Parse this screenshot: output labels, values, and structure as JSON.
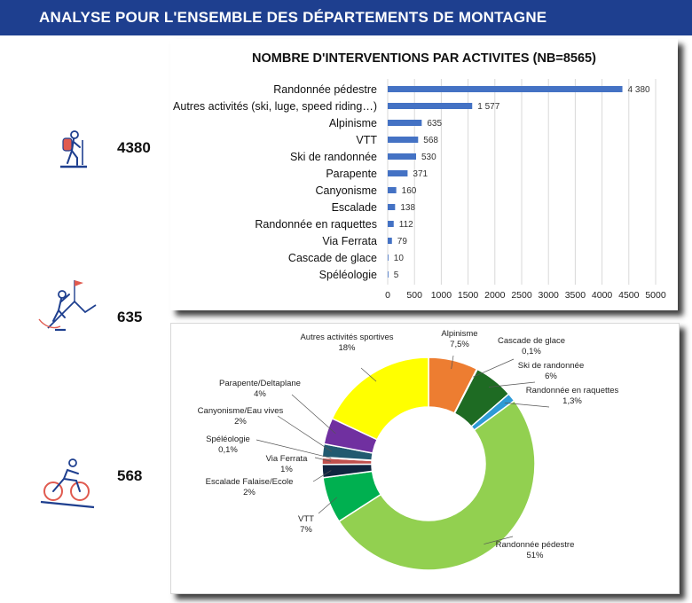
{
  "header": {
    "title": "ANALYSE POUR L'ENSEMBLE DES DÉPARTEMENTS DE MONTAGNE"
  },
  "stats": [
    {
      "value": "4380",
      "icon": "hiker-icon"
    },
    {
      "value": "635",
      "icon": "climber-icon"
    },
    {
      "value": "568",
      "icon": "mountain-biker-icon"
    }
  ],
  "colors": {
    "header": "#1e3f8f",
    "bar": "#4472c4"
  },
  "chart_data": [
    {
      "type": "bar",
      "orientation": "horizontal",
      "title": "NOMBRE D'INTERVENTIONS PAR ACTIVITES (NB=8565)",
      "categories": [
        "Randonnée pédestre",
        "Autres activités (ski, luge, speed riding…)",
        "Alpinisme",
        "VTT",
        "Ski de randonnée",
        "Parapente",
        "Canyonisme",
        "Escalade",
        "Randonnée en raquettes",
        "Via Ferrata",
        "Cascade de glace",
        "Spéléologie"
      ],
      "values": [
        4380,
        1577,
        635,
        568,
        530,
        371,
        160,
        138,
        112,
        79,
        10,
        5
      ],
      "value_labels": [
        "4 380",
        "1 577",
        "635",
        "568",
        "530",
        "371",
        "160",
        "138",
        "112",
        "79",
        "10",
        "5"
      ],
      "xlim": [
        0,
        5000
      ],
      "xticks": [
        0,
        500,
        1000,
        1500,
        2000,
        2500,
        3000,
        3500,
        4000,
        4500,
        5000
      ],
      "grid": true
    },
    {
      "type": "pie",
      "style": "donut",
      "slices": [
        {
          "name": "Alpinisme",
          "pct_label": "7,5%",
          "value": 7.5,
          "color": "#ed7d31"
        },
        {
          "name": "Cascade de glace",
          "pct_label": "0,1%",
          "value": 0.1,
          "color": "#a5a5a5"
        },
        {
          "name": "Ski de randonnée",
          "pct_label": "6%",
          "value": 6,
          "color": "#1e6b23"
        },
        {
          "name": "Randonnée en raquettes",
          "pct_label": "1,3%",
          "value": 1.3,
          "color": "#2e9bd6"
        },
        {
          "name": "Randonnée pédestre",
          "pct_label": "51%",
          "value": 51,
          "color": "#92d050"
        },
        {
          "name": "VTT",
          "pct_label": "7%",
          "value": 7,
          "color": "#00b050"
        },
        {
          "name": "Escalade Falaise/Ecole",
          "pct_label": "2%",
          "value": 2,
          "color": "#10253f"
        },
        {
          "name": "Via Ferrata",
          "pct_label": "1%",
          "value": 1,
          "color": "#c0504d"
        },
        {
          "name": "Spéléologie",
          "pct_label": "0,1%",
          "value": 0.1,
          "color": "#7f7f7f"
        },
        {
          "name": "Canyonisme/Eau vives",
          "pct_label": "2%",
          "value": 2,
          "color": "#215a70"
        },
        {
          "name": "Parapente/Deltaplane",
          "pct_label": "4%",
          "value": 4,
          "color": "#7030a0"
        },
        {
          "name": "Autres activités sportives",
          "pct_label": "18%",
          "value": 18,
          "color": "#ffff00"
        }
      ]
    }
  ]
}
